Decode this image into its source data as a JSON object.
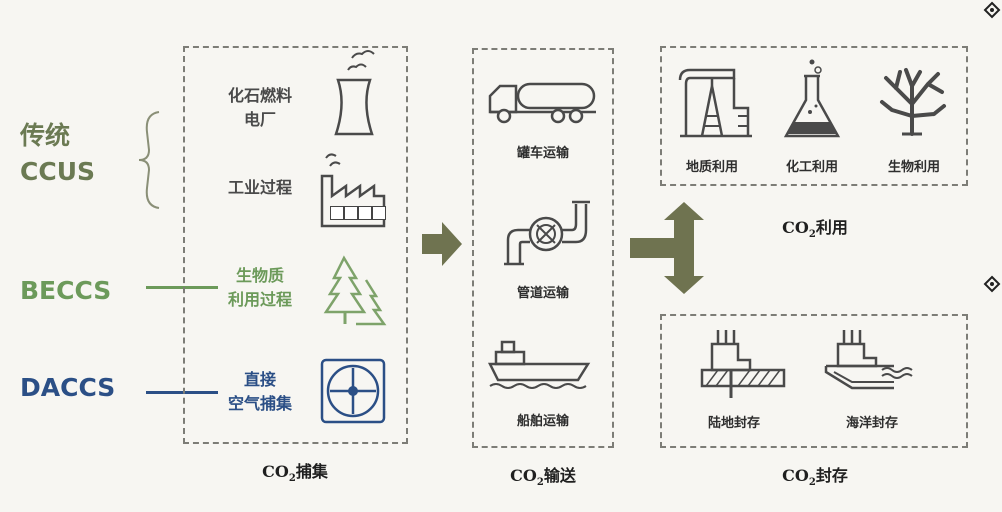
{
  "categories": {
    "traditional": {
      "line1": "传统",
      "line2": "CCUS",
      "color": "#6b7a53"
    },
    "beccs": {
      "label": "BECCS",
      "color": "#6c9a5a"
    },
    "daccs": {
      "label": "DACCS",
      "color": "#2b4f86"
    }
  },
  "capture": {
    "items": [
      {
        "label_line1": "化石燃料",
        "label_line2": "电厂",
        "icon": "cooling-tower-icon"
      },
      {
        "label": "工业过程",
        "icon": "factory-icon"
      },
      {
        "label_line1": "生物质",
        "label_line2": "利用过程",
        "icon": "trees-icon"
      },
      {
        "label_line1": "直接",
        "label_line2": "空气捕集",
        "icon": "fan-icon"
      }
    ],
    "caption_prefix": "CO",
    "caption_sub": "2",
    "caption_suffix": "捕集"
  },
  "transport": {
    "items": [
      {
        "label": "罐车运输",
        "icon": "tanker-truck-icon"
      },
      {
        "label": "管道运输",
        "icon": "pipeline-valve-icon"
      },
      {
        "label": "船舶运输",
        "icon": "ship-icon"
      }
    ],
    "caption_prefix": "CO",
    "caption_sub": "2",
    "caption_suffix": "输送"
  },
  "utilization": {
    "items": [
      {
        "label": "地质利用",
        "icon": "oil-pump-icon"
      },
      {
        "label": "化工利用",
        "icon": "flask-icon"
      },
      {
        "label": "生物利用",
        "icon": "coral-icon"
      }
    ],
    "caption_prefix": "CO",
    "caption_sub": "2",
    "caption_suffix": "利用"
  },
  "storage": {
    "items": [
      {
        "label": "陆地封存",
        "icon": "land-storage-icon"
      },
      {
        "label": "海洋封存",
        "icon": "ocean-storage-icon"
      }
    ],
    "caption_prefix": "CO",
    "caption_sub": "2",
    "caption_suffix": "封存"
  },
  "colors": {
    "arrow": "#6f7350",
    "line_art": "#4a4a4a",
    "green_art": "#7ea36a",
    "blue_art": "#2b4f86"
  }
}
